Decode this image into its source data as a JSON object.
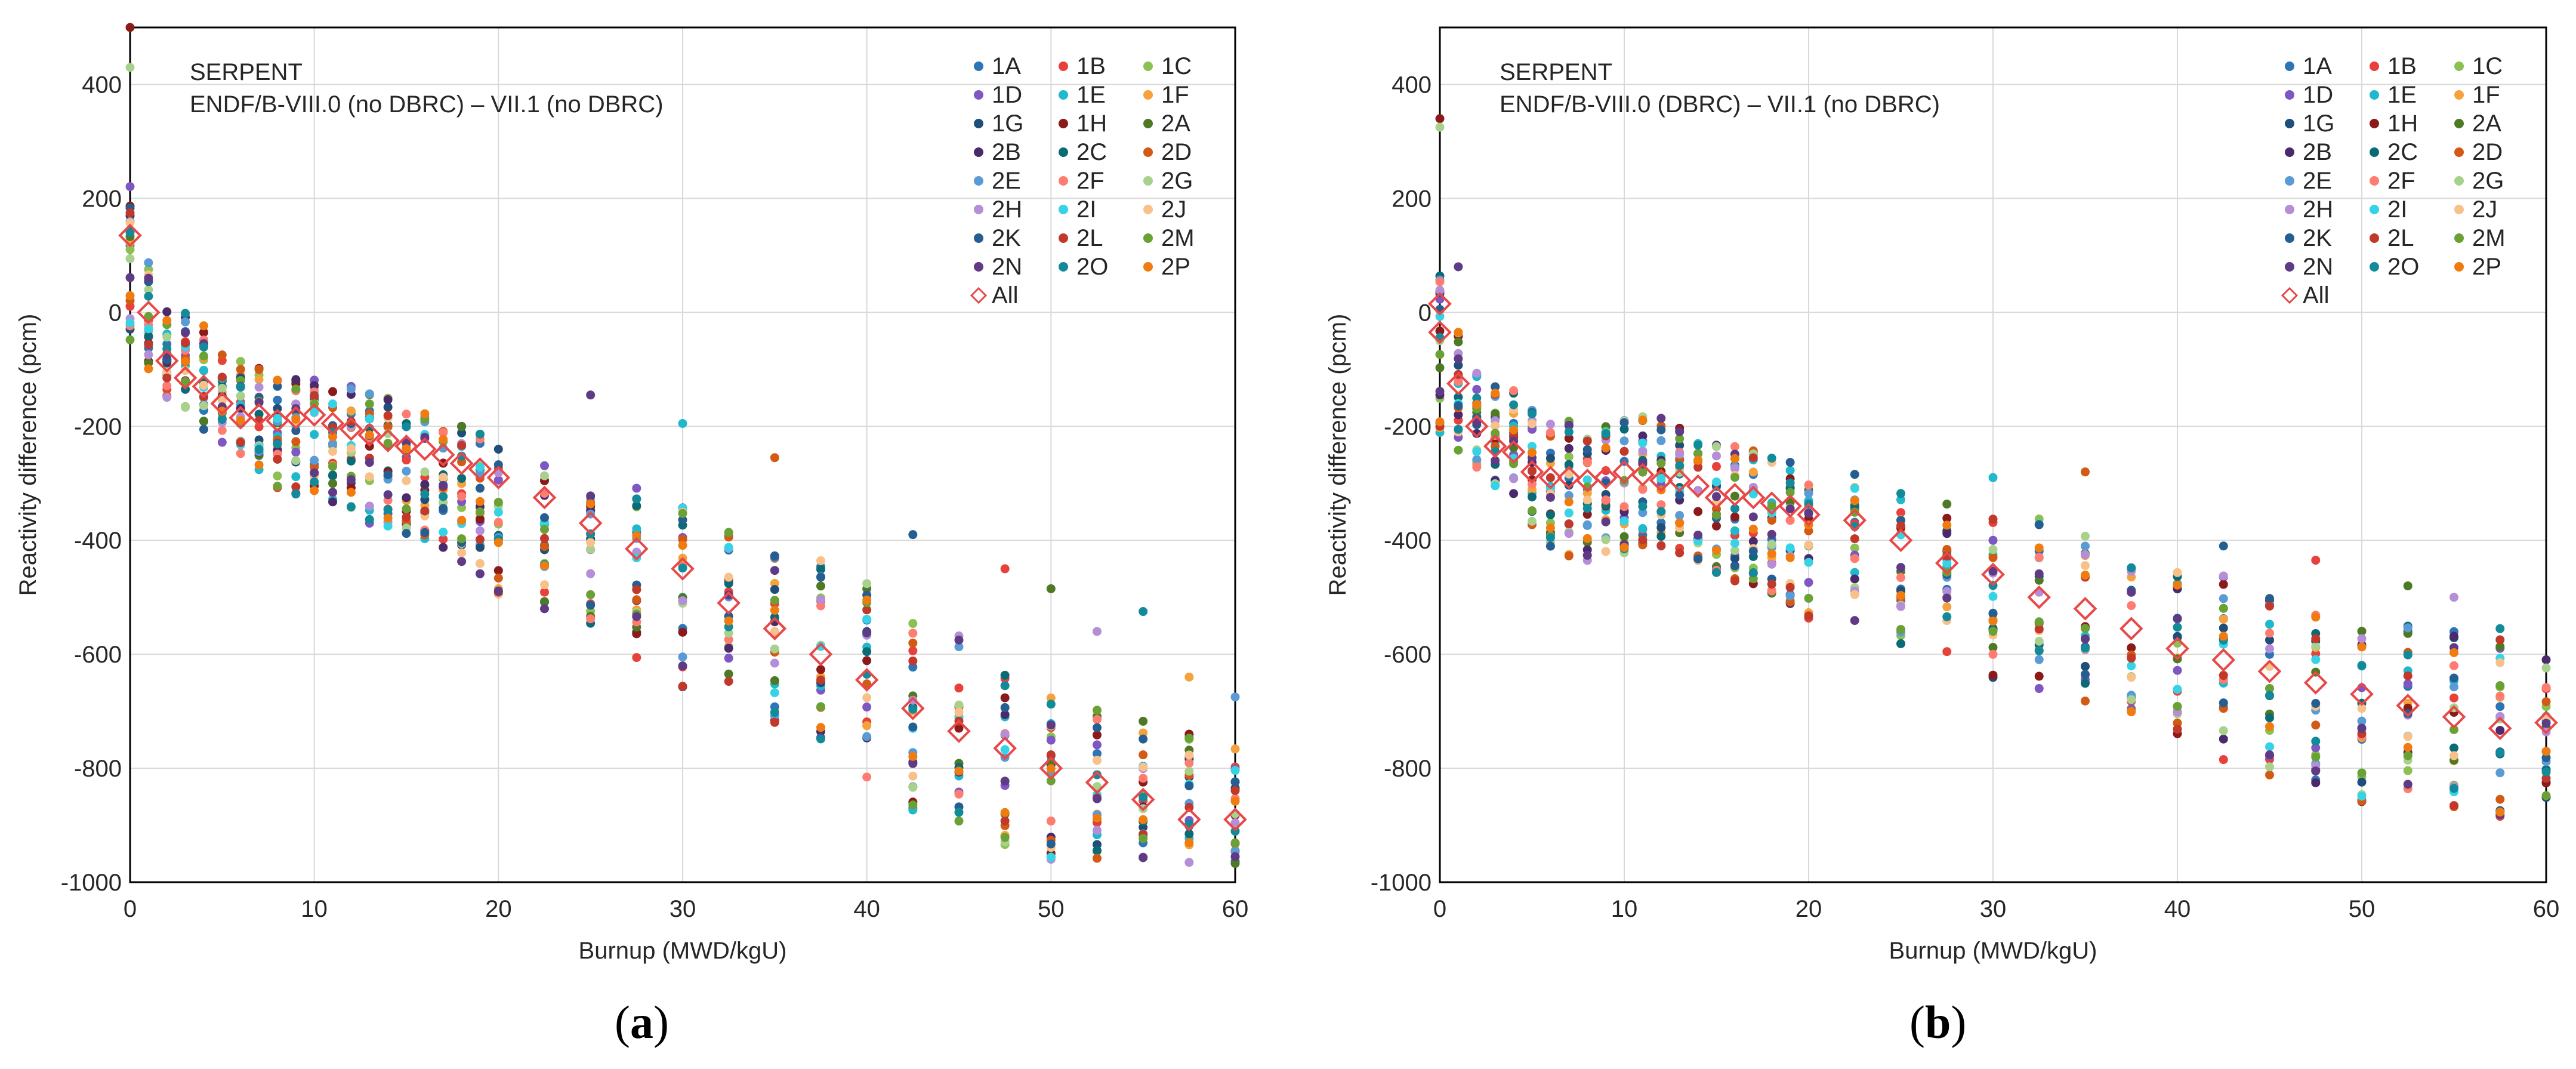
{
  "chart_data": [
    {
      "type": "scatter",
      "panel": "a",
      "title_line1": "SERPENT",
      "title_line2": "ENDF/B-VIII.0 (no DBRC) – VII.1 (no DBRC)",
      "xlabel": "Burnup (MWD/kgU)",
      "ylabel": "Reactivity difference (pcm)",
      "xlim": [
        0,
        60
      ],
      "ylim": [
        -1000,
        500
      ],
      "xticks": [
        "0",
        "10",
        "20",
        "30",
        "40",
        "50",
        "60"
      ],
      "yticks": [
        "400",
        "200",
        "0",
        "-200",
        "-400",
        "-600",
        "-800",
        "-1000"
      ],
      "grid": true,
      "legend_position": "top-right",
      "burnup_points": [
        0,
        1,
        2,
        3,
        4,
        5,
        6,
        7,
        8,
        9,
        10,
        11,
        12,
        13,
        14,
        15,
        16,
        17,
        18,
        19,
        20,
        22.5,
        25,
        27.5,
        30,
        32.5,
        35,
        37.5,
        40,
        42.5,
        45,
        47.5,
        50,
        52.5,
        55,
        57.5,
        60
      ],
      "all_series": {
        "name": "All",
        "x": [
          0,
          1,
          2,
          3,
          4,
          5,
          6,
          7,
          8,
          9,
          10,
          11,
          12,
          13,
          14,
          15,
          16,
          17,
          18,
          19,
          20,
          22.5,
          25,
          27.5,
          30,
          32.5,
          35,
          37.5,
          40,
          42.5,
          45,
          47.5,
          50,
          52.5,
          55,
          57.5,
          60
        ],
        "y": [
          135,
          0,
          -85,
          -115,
          -130,
          -160,
          -185,
          -180,
          -190,
          -185,
          -180,
          -195,
          -205,
          -215,
          -225,
          -235,
          -240,
          -250,
          -265,
          -275,
          -290,
          -325,
          -370,
          -415,
          -450,
          -510,
          -555,
          -600,
          -645,
          -695,
          -735,
          -765,
          -800,
          -825,
          -855,
          -890,
          -890
        ]
      },
      "spread_low": [
        -120,
        -150,
        -170,
        -190,
        -230,
        -250,
        -270,
        -320,
        -340,
        -350,
        -360,
        -370,
        -380,
        -400,
        -410,
        -420,
        -430,
        -450,
        -470,
        -500,
        -530,
        -560,
        -610,
        -650,
        -700,
        -740,
        -780,
        -820,
        -870,
        -920,
        -950,
        -980,
        -1000,
        -1000,
        -1000,
        -1000,
        -1000
      ],
      "spread_high": [
        260,
        120,
        30,
        20,
        0,
        -40,
        -60,
        -70,
        -80,
        -90,
        -80,
        -90,
        -100,
        -110,
        -120,
        -130,
        -140,
        -150,
        -160,
        -170,
        -190,
        -230,
        -260,
        -270,
        -300,
        -340,
        -360,
        -380,
        -420,
        -460,
        -500,
        -560,
        -600,
        -650,
        -680,
        -700,
        -720
      ],
      "outliers": [
        {
          "x": 0,
          "y": 500
        },
        {
          "x": 0,
          "y": 430
        },
        {
          "x": 25,
          "y": -145
        },
        {
          "x": 30,
          "y": -195
        },
        {
          "x": 35,
          "y": -255
        },
        {
          "x": 42.5,
          "y": -390
        },
        {
          "x": 47.5,
          "y": -450
        },
        {
          "x": 50,
          "y": -485
        },
        {
          "x": 52.5,
          "y": -560
        },
        {
          "x": 55,
          "y": -525
        },
        {
          "x": 57.5,
          "y": -640
        },
        {
          "x": 60,
          "y": -675
        }
      ]
    },
    {
      "type": "scatter",
      "panel": "b",
      "title_line1": "SERPENT",
      "title_line2": "ENDF/B-VIII.0 (DBRC) – VII.1 (no DBRC)",
      "xlabel": "Burnup (MWD/kgU)",
      "ylabel": "Reactivity difference (pcm)",
      "xlim": [
        0,
        60
      ],
      "ylim": [
        -1000,
        500
      ],
      "xticks": [
        "0",
        "10",
        "20",
        "30",
        "40",
        "50",
        "60"
      ],
      "yticks": [
        "400",
        "200",
        "0",
        "-200",
        "-400",
        "-600",
        "-800",
        "-1000"
      ],
      "grid": true,
      "legend_position": "top-right",
      "burnup_points": [
        0,
        1,
        2,
        3,
        4,
        5,
        6,
        7,
        8,
        9,
        10,
        11,
        12,
        13,
        14,
        15,
        16,
        17,
        18,
        19,
        20,
        22.5,
        25,
        27.5,
        30,
        32.5,
        35,
        37.5,
        40,
        42.5,
        45,
        47.5,
        50,
        52.5,
        55,
        57.5,
        60
      ],
      "all_series": {
        "name": "All",
        "x": [
          0,
          0,
          1,
          2,
          3,
          4,
          5,
          6,
          7,
          8,
          9,
          10,
          11,
          12,
          13,
          14,
          15,
          16,
          17,
          18,
          19,
          20,
          22.5,
          25,
          27.5,
          30,
          32.5,
          35,
          37.5,
          40,
          42.5,
          45,
          47.5,
          50,
          52.5,
          55,
          57.5,
          60
        ],
        "y": [
          15,
          -35,
          -125,
          -200,
          -235,
          -245,
          -280,
          -290,
          -290,
          -295,
          -290,
          -280,
          -285,
          -295,
          -295,
          -305,
          -325,
          -320,
          -325,
          -335,
          -340,
          -355,
          -365,
          -400,
          -440,
          -460,
          -500,
          -520,
          -555,
          -590,
          -610,
          -630,
          -650,
          -670,
          -690,
          -710,
          -730,
          -720
        ]
      },
      "spread_low": [
        -250,
        -280,
        -300,
        -330,
        -360,
        -400,
        -440,
        -480,
        -480,
        -470,
        -460,
        -440,
        -440,
        -460,
        -470,
        -490,
        -510,
        -530,
        -550,
        -560,
        -570,
        -580,
        -620,
        -650,
        -680,
        -700,
        -720,
        -750,
        -780,
        -830,
        -860,
        -880,
        -900,
        -910,
        -920,
        -930,
        -910
      ],
      "spread_high": [
        100,
        0,
        -80,
        -90,
        -100,
        -130,
        -150,
        -150,
        -160,
        -160,
        -150,
        -140,
        -150,
        -160,
        -180,
        -190,
        -200,
        -210,
        -220,
        -230,
        -240,
        -250,
        -280,
        -300,
        -300,
        -320,
        -350,
        -380,
        -410,
        -420,
        -450,
        -480,
        -490,
        -500,
        -510,
        -530,
        -540
      ],
      "outliers": [
        {
          "x": 0,
          "y": 340
        },
        {
          "x": 0,
          "y": 325
        },
        {
          "x": 1,
          "y": 80
        },
        {
          "x": 30,
          "y": -290
        },
        {
          "x": 35,
          "y": -280
        },
        {
          "x": 42.5,
          "y": -410
        },
        {
          "x": 47.5,
          "y": -435
        },
        {
          "x": 52.5,
          "y": -480
        },
        {
          "x": 55,
          "y": -500
        },
        {
          "x": 57.5,
          "y": -555
        }
      ]
    }
  ],
  "legend": {
    "series": [
      {
        "name": "1A",
        "color": "#2e75b6"
      },
      {
        "name": "1B",
        "color": "#e8413c"
      },
      {
        "name": "1C",
        "color": "#8cc152"
      },
      {
        "name": "1D",
        "color": "#7e57c2"
      },
      {
        "name": "1E",
        "color": "#1fb8cc"
      },
      {
        "name": "1F",
        "color": "#f5a23c"
      },
      {
        "name": "1G",
        "color": "#1f4e79"
      },
      {
        "name": "1H",
        "color": "#8b1a1a"
      },
      {
        "name": "2A",
        "color": "#4e7a25"
      },
      {
        "name": "2B",
        "color": "#4b2a6b"
      },
      {
        "name": "2C",
        "color": "#0a6b76"
      },
      {
        "name": "2D",
        "color": "#d35a14"
      },
      {
        "name": "2E",
        "color": "#5b9bd5"
      },
      {
        "name": "2F",
        "color": "#ff7c70"
      },
      {
        "name": "2G",
        "color": "#a9d18e"
      },
      {
        "name": "2H",
        "color": "#b48fd8"
      },
      {
        "name": "2I",
        "color": "#36d3e6"
      },
      {
        "name": "2J",
        "color": "#f8c189"
      },
      {
        "name": "2K",
        "color": "#255e91"
      },
      {
        "name": "2L",
        "color": "#c0392b"
      },
      {
        "name": "2M",
        "color": "#6aa135"
      },
      {
        "name": "2N",
        "color": "#5f3a85"
      },
      {
        "name": "2O",
        "color": "#128a99"
      },
      {
        "name": "2P",
        "color": "#f07c10"
      }
    ],
    "all_label": "All",
    "all_color": "#e84848"
  },
  "panel_labels": [
    "a",
    "b"
  ]
}
